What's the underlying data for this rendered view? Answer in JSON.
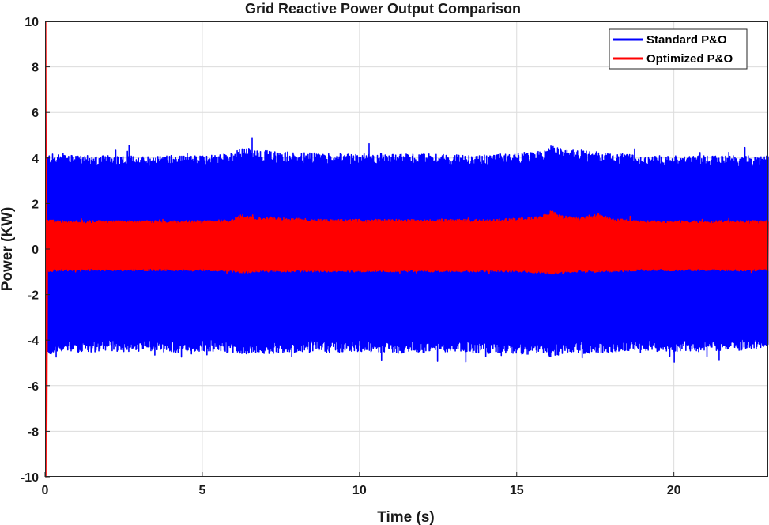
{
  "chart_data": {
    "type": "line",
    "title": "Grid Reactive Power Output Comparison",
    "xlabel": "Time (s)",
    "ylabel": "Power (KW)",
    "xlim": [
      0,
      23
    ],
    "ylim": [
      -10,
      10
    ],
    "xticks": [
      0,
      5,
      10,
      15,
      20
    ],
    "yticks": [
      -10,
      -8,
      -6,
      -4,
      -2,
      0,
      2,
      4,
      6,
      8,
      10
    ],
    "grid": true,
    "legend_position": "top-right",
    "series": [
      {
        "name": "Standard P&O",
        "color": "#0000ff",
        "description_envelope": {
          "t": [
            0.08,
            0.5,
            1,
            2,
            3,
            4,
            5,
            5.9,
            6.2,
            6.4,
            6.8,
            7.2,
            8,
            9,
            10,
            11,
            12,
            13,
            14,
            15,
            15.8,
            16.1,
            16.5,
            17,
            17.6,
            18,
            19,
            20,
            21,
            22,
            23
          ],
          "upper": [
            4.2,
            4.15,
            4.1,
            4.12,
            4.1,
            4.13,
            4.1,
            4.2,
            4.45,
            4.5,
            4.35,
            4.3,
            4.25,
            4.2,
            4.2,
            4.2,
            4.18,
            4.15,
            4.15,
            4.2,
            4.3,
            4.55,
            4.4,
            4.35,
            4.3,
            4.25,
            4.1,
            4.12,
            4.1,
            4.1,
            4.1
          ],
          "lower": [
            -4.7,
            -4.5,
            -4.55,
            -4.5,
            -4.5,
            -4.55,
            -4.5,
            -4.55,
            -4.7,
            -4.65,
            -4.6,
            -4.6,
            -4.55,
            -4.55,
            -4.5,
            -4.6,
            -4.55,
            -4.5,
            -4.6,
            -4.6,
            -4.65,
            -4.75,
            -4.6,
            -4.6,
            -4.55,
            -4.55,
            -4.5,
            -4.5,
            -4.5,
            -4.45,
            -4.4
          ]
        },
        "initial_spike": [
          6.0,
          -4.8
        ]
      },
      {
        "name": "Optimized P&O",
        "color": "#ff0000",
        "description_envelope": {
          "t": [
            0.08,
            0.5,
            1,
            2,
            3,
            4,
            5,
            5.9,
            6.2,
            6.4,
            6.8,
            7.2,
            8,
            9,
            10,
            11,
            12,
            13,
            14,
            15,
            15.8,
            16.1,
            16.5,
            17,
            17.6,
            18,
            19,
            20,
            21,
            22,
            23
          ],
          "upper": [
            1.3,
            1.25,
            1.25,
            1.25,
            1.25,
            1.25,
            1.25,
            1.3,
            1.5,
            1.45,
            1.4,
            1.4,
            1.35,
            1.3,
            1.3,
            1.3,
            1.3,
            1.3,
            1.3,
            1.35,
            1.45,
            1.7,
            1.45,
            1.4,
            1.55,
            1.35,
            1.25,
            1.25,
            1.25,
            1.25,
            1.25
          ],
          "lower": [
            -1.0,
            -0.95,
            -0.95,
            -0.95,
            -0.95,
            -0.95,
            -0.95,
            -1.0,
            -1.05,
            -1.05,
            -1.0,
            -1.0,
            -1.0,
            -1.0,
            -1.0,
            -1.0,
            -1.0,
            -1.0,
            -1.0,
            -1.0,
            -1.05,
            -1.1,
            -1.05,
            -1.0,
            -1.0,
            -1.0,
            -0.95,
            -0.95,
            -0.95,
            -0.95,
            -0.95
          ]
        },
        "initial_spike": [
          10,
          -10
        ]
      }
    ]
  }
}
